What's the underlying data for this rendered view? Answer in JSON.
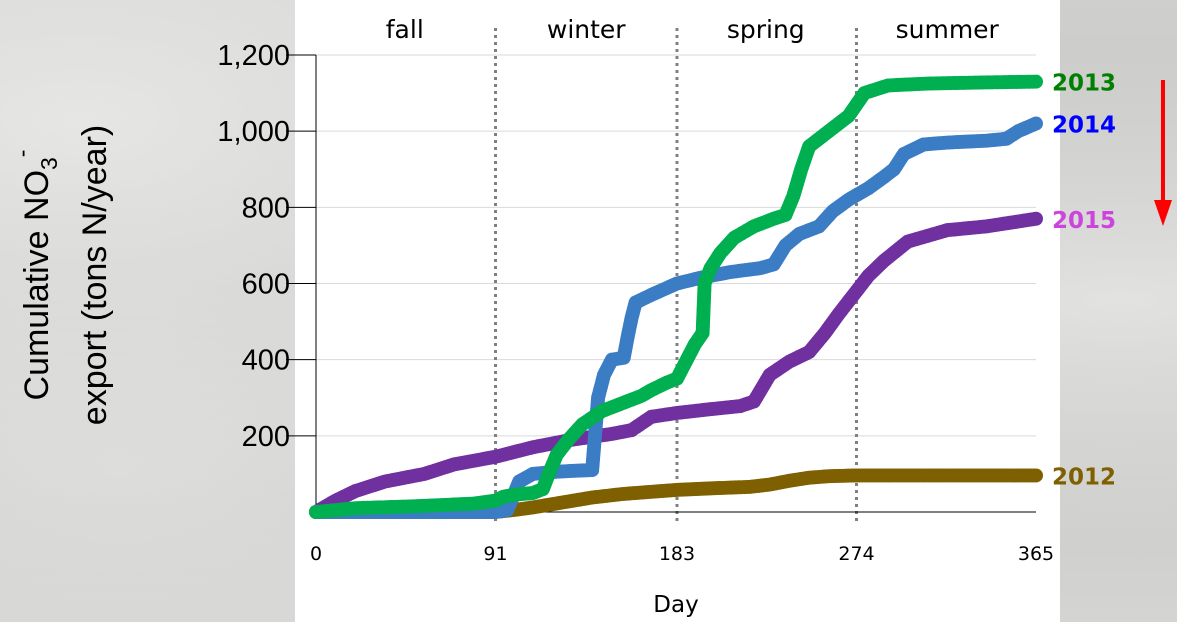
{
  "chart_data": {
    "type": "scatter",
    "title": "",
    "xlabel": "Day",
    "ylabel_line1": "Cumulative NO",
    "ylabel_sub": "3",
    "ylabel_sup": "-",
    "ylabel_line2": "export (tons N/year)",
    "xlim": [
      0,
      365
    ],
    "ylim": [
      0,
      1200
    ],
    "x_ticks": [
      0,
      91,
      183,
      274,
      365
    ],
    "x_tick_labels": [
      "0",
      "91",
      "183",
      "274",
      "365"
    ],
    "y_ticks": [
      200,
      400,
      600,
      800,
      1000,
      1200
    ],
    "y_tick_labels": [
      "200",
      "400",
      "600",
      "800",
      "1,000",
      "1,200"
    ],
    "grid": "horizontal",
    "season_dividers": [
      91,
      183,
      274
    ],
    "seasons": [
      {
        "label": "fall",
        "x": 45
      },
      {
        "label": "winter",
        "x": 137
      },
      {
        "label": "spring",
        "x": 228
      },
      {
        "label": "summer",
        "x": 320
      }
    ],
    "arrow_color": "#ff0000",
    "series": [
      {
        "name": "2012",
        "color": "#7f6000",
        "label_color": "#7f6000",
        "points": [
          [
            0,
            0
          ],
          [
            91,
            0
          ],
          [
            100,
            5
          ],
          [
            110,
            12
          ],
          [
            125,
            25
          ],
          [
            140,
            38
          ],
          [
            155,
            47
          ],
          [
            170,
            53
          ],
          [
            183,
            58
          ],
          [
            200,
            62
          ],
          [
            220,
            66
          ],
          [
            230,
            72
          ],
          [
            240,
            82
          ],
          [
            250,
            90
          ],
          [
            260,
            94
          ],
          [
            274,
            96
          ],
          [
            300,
            96
          ],
          [
            330,
            96
          ],
          [
            365,
            96
          ]
        ]
      },
      {
        "name": "2013",
        "color": "#00b050",
        "label_color": "#008000",
        "points": [
          [
            0,
            0
          ],
          [
            20,
            10
          ],
          [
            50,
            15
          ],
          [
            80,
            22
          ],
          [
            91,
            30
          ],
          [
            95,
            40
          ],
          [
            100,
            45
          ],
          [
            110,
            50
          ],
          [
            115,
            60
          ],
          [
            118,
            100
          ],
          [
            122,
            150
          ],
          [
            128,
            190
          ],
          [
            135,
            230
          ],
          [
            145,
            265
          ],
          [
            155,
            285
          ],
          [
            165,
            305
          ],
          [
            170,
            320
          ],
          [
            178,
            340
          ],
          [
            183,
            350
          ],
          [
            187,
            390
          ],
          [
            192,
            440
          ],
          [
            196,
            470
          ],
          [
            197,
            600
          ],
          [
            200,
            640
          ],
          [
            205,
            680
          ],
          [
            212,
            720
          ],
          [
            222,
            750
          ],
          [
            232,
            770
          ],
          [
            238,
            780
          ],
          [
            242,
            830
          ],
          [
            246,
            900
          ],
          [
            250,
            960
          ],
          [
            260,
            1000
          ],
          [
            270,
            1040
          ],
          [
            278,
            1100
          ],
          [
            290,
            1120
          ],
          [
            310,
            1125
          ],
          [
            340,
            1128
          ],
          [
            365,
            1130
          ]
        ]
      },
      {
        "name": "2014",
        "color": "#3b7dc4",
        "label_color": "#0000ff",
        "points": [
          [
            0,
            0
          ],
          [
            50,
            0
          ],
          [
            91,
            0
          ],
          [
            97,
            5
          ],
          [
            103,
            80
          ],
          [
            110,
            100
          ],
          [
            120,
            105
          ],
          [
            130,
            108
          ],
          [
            140,
            110
          ],
          [
            143,
            300
          ],
          [
            146,
            360
          ],
          [
            150,
            400
          ],
          [
            156,
            405
          ],
          [
            158,
            460
          ],
          [
            160,
            510
          ],
          [
            162,
            550
          ],
          [
            170,
            570
          ],
          [
            183,
            600
          ],
          [
            195,
            615
          ],
          [
            210,
            630
          ],
          [
            225,
            640
          ],
          [
            232,
            650
          ],
          [
            238,
            700
          ],
          [
            245,
            730
          ],
          [
            255,
            750
          ],
          [
            262,
            790
          ],
          [
            270,
            820
          ],
          [
            280,
            850
          ],
          [
            288,
            880
          ],
          [
            293,
            900
          ],
          [
            298,
            940
          ],
          [
            308,
            965
          ],
          [
            320,
            970
          ],
          [
            340,
            975
          ],
          [
            350,
            980
          ],
          [
            356,
            1000
          ],
          [
            365,
            1020
          ]
        ]
      },
      {
        "name": "2015",
        "color": "#7030a0",
        "label_color": "#cc44dd",
        "points": [
          [
            0,
            0
          ],
          [
            10,
            30
          ],
          [
            20,
            55
          ],
          [
            35,
            80
          ],
          [
            55,
            100
          ],
          [
            70,
            125
          ],
          [
            91,
            145
          ],
          [
            110,
            170
          ],
          [
            130,
            190
          ],
          [
            150,
            205
          ],
          [
            160,
            215
          ],
          [
            170,
            250
          ],
          [
            183,
            260
          ],
          [
            200,
            270
          ],
          [
            215,
            278
          ],
          [
            222,
            290
          ],
          [
            230,
            360
          ],
          [
            240,
            395
          ],
          [
            250,
            420
          ],
          [
            258,
            470
          ],
          [
            265,
            520
          ],
          [
            274,
            580
          ],
          [
            280,
            620
          ],
          [
            288,
            660
          ],
          [
            300,
            710
          ],
          [
            320,
            740
          ],
          [
            340,
            750
          ],
          [
            365,
            770
          ]
        ]
      }
    ]
  }
}
